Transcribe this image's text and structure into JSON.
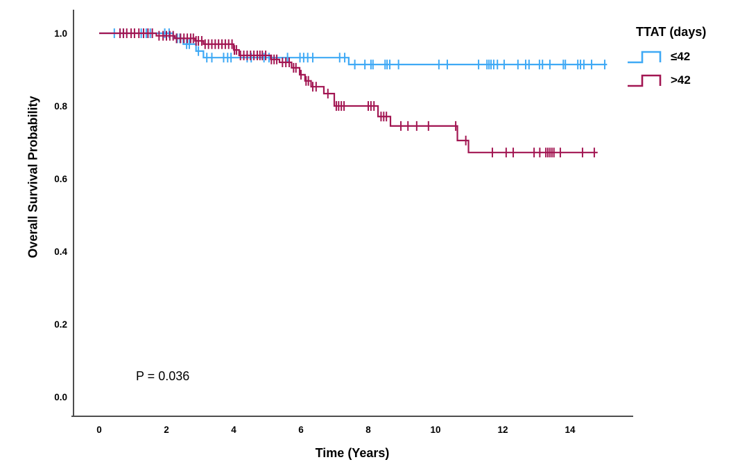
{
  "chart_data": {
    "type": "line",
    "subtype": "kaplan-meier-step",
    "title": "",
    "xlabel": "Time (Years)",
    "ylabel": "Overall Survival Probability",
    "xticks": [
      "0",
      "2",
      "4",
      "6",
      "8",
      "10",
      "12",
      "14"
    ],
    "xtick_values": [
      0,
      2,
      4,
      6,
      8,
      10,
      12,
      14
    ],
    "yticks": [
      "1.0",
      "0.8",
      "0.6",
      "0.4",
      "0.2",
      "0.0"
    ],
    "ytick_values": [
      1.0,
      0.8,
      0.6,
      0.4,
      0.2,
      0.0
    ],
    "xlim": [
      -0.75,
      15.9
    ],
    "ylim": [
      -0.055,
      1.06
    ],
    "grid": false,
    "annotation": {
      "text": "P = 0.036",
      "x": 1.15,
      "y": 0.07
    },
    "legend": {
      "title": "TTAT (days)",
      "position": "outside-top-right",
      "entries": [
        {
          "label": "≤42",
          "color": "#3FA9F5"
        },
        {
          "label": ">42",
          "color": "#A21652"
        }
      ]
    },
    "axis_color": "#4D4D4D",
    "series": [
      {
        "name": "≤42",
        "color": "#3FA9F5",
        "end_t": 15.1,
        "steps": [
          [
            0,
            1.0
          ],
          [
            2.2,
            0.986
          ],
          [
            2.5,
            0.97
          ],
          [
            2.88,
            0.951
          ],
          [
            3.1,
            0.933
          ],
          [
            7.42,
            0.914
          ]
        ],
        "censors": [
          0.45,
          0.62,
          0.72,
          1.25,
          1.4,
          1.52,
          1.95,
          2.08,
          2.32,
          2.4,
          2.6,
          2.68,
          2.95,
          3.2,
          3.35,
          3.7,
          3.82,
          3.92,
          4.4,
          4.52,
          4.9,
          5.05,
          5.6,
          5.97,
          6.08,
          6.2,
          6.35,
          7.15,
          7.3,
          7.6,
          7.9,
          8.08,
          8.14,
          8.5,
          8.56,
          8.64,
          8.9,
          10.1,
          10.35,
          11.28,
          11.53,
          11.59,
          11.65,
          11.73,
          11.84,
          12.04,
          12.45,
          12.68,
          12.78,
          13.09,
          13.18,
          13.4,
          13.8,
          13.86,
          14.23,
          14.31,
          14.41,
          14.64,
          15.03
        ]
      },
      {
        "name": ">42",
        "color": "#A21652",
        "end_t": 14.82,
        "steps": [
          [
            0,
            1.0
          ],
          [
            1.7,
            0.993
          ],
          [
            2.25,
            0.986
          ],
          [
            2.85,
            0.979
          ],
          [
            3.1,
            0.97
          ],
          [
            4.0,
            0.954
          ],
          [
            4.16,
            0.939
          ],
          [
            5.1,
            0.928
          ],
          [
            5.36,
            0.92
          ],
          [
            5.72,
            0.905
          ],
          [
            5.96,
            0.886
          ],
          [
            6.12,
            0.869
          ],
          [
            6.3,
            0.853
          ],
          [
            6.68,
            0.834
          ],
          [
            6.99,
            0.8
          ],
          [
            8.29,
            0.771
          ],
          [
            8.66,
            0.745
          ],
          [
            10.65,
            0.705
          ],
          [
            10.98,
            0.672
          ]
        ],
        "censors": [
          0.62,
          0.72,
          0.82,
          0.95,
          1.05,
          1.18,
          1.32,
          1.45,
          1.58,
          1.78,
          1.9,
          2.0,
          2.1,
          2.2,
          2.3,
          2.42,
          2.52,
          2.62,
          2.72,
          2.8,
          2.88,
          2.95,
          3.05,
          3.15,
          3.25,
          3.35,
          3.45,
          3.55,
          3.65,
          3.75,
          3.85,
          3.95,
          4.02,
          4.08,
          4.2,
          4.3,
          4.4,
          4.5,
          4.6,
          4.7,
          4.78,
          4.85,
          4.95,
          5.12,
          5.2,
          5.28,
          5.45,
          5.55,
          5.65,
          5.78,
          5.85,
          6.0,
          6.15,
          6.22,
          6.35,
          6.45,
          6.8,
          7.05,
          7.12,
          7.2,
          7.28,
          8.0,
          8.08,
          8.17,
          8.38,
          8.46,
          8.54,
          8.97,
          9.18,
          9.44,
          9.79,
          10.6,
          10.9,
          11.69,
          12.1,
          12.31,
          12.93,
          13.1,
          13.28,
          13.34,
          13.4,
          13.46,
          13.52,
          13.71,
          14.37,
          14.72
        ]
      }
    ]
  }
}
